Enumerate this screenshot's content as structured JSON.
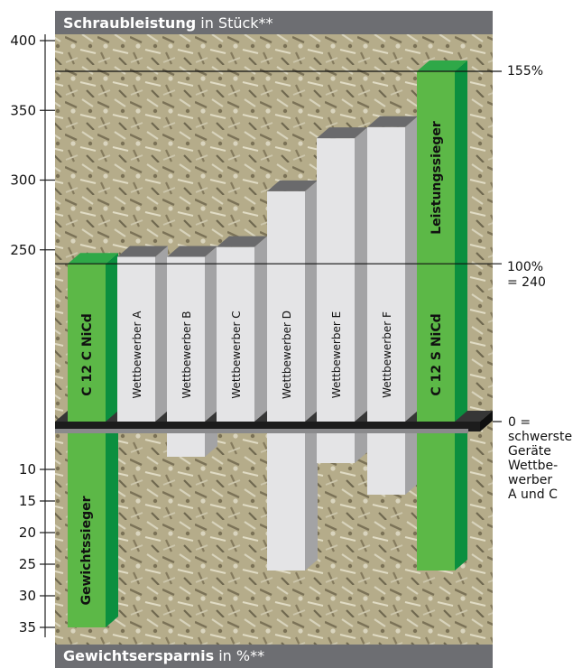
{
  "header_top": {
    "bold": "Schraubleistung",
    "rest": " in Stück**"
  },
  "header_bottom": {
    "bold": "Gewichtsersparnis",
    "rest": " in %**"
  },
  "right_labels": {
    "p155": "155%",
    "p100": "100%",
    "p100b": "= 240",
    "zero": [
      "0 =",
      "schwerste",
      "Geräte",
      "Wettbe-",
      "werber",
      "A und C"
    ]
  },
  "colors": {
    "green_front": "#5cb847",
    "green_side": "#0b8f3f",
    "green_top": "#2fa848",
    "gray_front": "#e4e4e6",
    "gray_side": "#a3a3a5",
    "gray_top": "#6a6a6c",
    "header": "#6d6e72",
    "platform": "#1c1c1c"
  },
  "chart_data": {
    "type": "bar",
    "categories": [
      "C 12 C NiCd",
      "Wettbewerber A",
      "Wettbewerber B",
      "Wettbewerber C",
      "Wettbewerber D",
      "Wettbewerber E",
      "Wettbewerber F",
      "C 12 S NiCd"
    ],
    "upper_axis": {
      "label": "Schraubleistung in Stück**",
      "ticks": [
        "400",
        "350",
        "300",
        "250"
      ],
      "tick_values": [
        400,
        350,
        300,
        250
      ]
    },
    "lower_axis": {
      "label": "Gewichtsersparnis in %**",
      "ticks": [
        "10",
        "15",
        "20",
        "25",
        "30",
        "35"
      ],
      "tick_values": [
        10,
        15,
        20,
        25,
        30,
        35
      ]
    },
    "series": [
      {
        "name": "Schraubleistung",
        "values": [
          240,
          245,
          245,
          252,
          292,
          330,
          338,
          378
        ]
      },
      {
        "name": "Gewichtsersparnis",
        "values": [
          35,
          0,
          8,
          0,
          26,
          9,
          14,
          26
        ]
      }
    ],
    "extra_labels": [
      "Leistungssieger",
      "Gewichtssieger"
    ],
    "reference_lines": [
      {
        "value": 378,
        "label": "155%"
      },
      {
        "value": 240,
        "label": "100% = 240"
      }
    ]
  }
}
